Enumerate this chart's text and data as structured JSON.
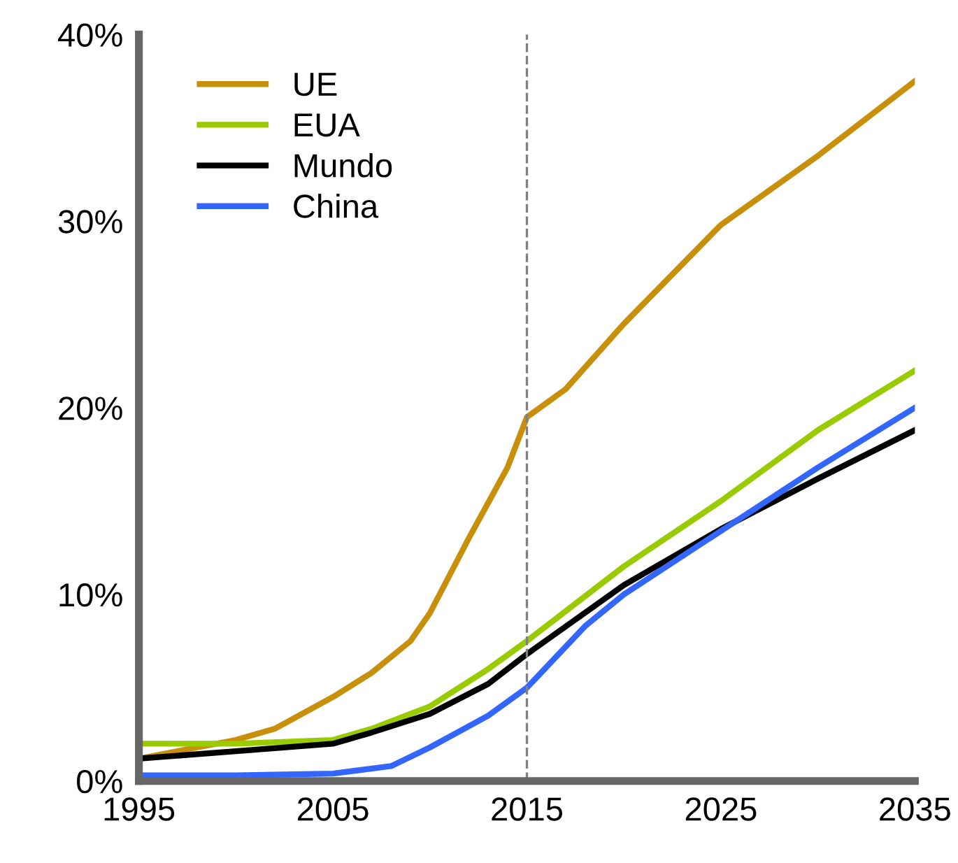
{
  "chart_data": {
    "type": "line",
    "xlim": [
      1995,
      2035
    ],
    "xticks": [
      1995,
      2005,
      2015,
      2025,
      2035
    ],
    "ylim": [
      0,
      40
    ],
    "yticks": [
      {
        "value": 0,
        "label": "0%"
      },
      {
        "value": 10,
        "label": "10%"
      },
      {
        "value": 20,
        "label": "20%"
      },
      {
        "value": 30,
        "label": "30%"
      },
      {
        "value": 40,
        "label": "40%"
      }
    ],
    "grid": false,
    "legend": "top left",
    "line_style": "solid",
    "marker": "none",
    "ref_lines": [
      {
        "axis": "x",
        "value": 2015,
        "color": "#808080",
        "line_style": "dashed"
      }
    ],
    "series": [
      {
        "name": "UE",
        "color": "#c8900a",
        "x": [
          1995,
          1998,
          2000,
          2002,
          2005,
          2007,
          2009,
          2010,
          2012,
          2014,
          2015,
          2017,
          2020,
          2025,
          2030,
          2035
        ],
        "values": [
          1.2,
          1.8,
          2.2,
          2.8,
          4.5,
          5.8,
          7.5,
          9,
          13,
          16.8,
          19.5,
          21,
          24.5,
          29.8,
          33.5,
          37.5
        ]
      },
      {
        "name": "EUA",
        "color": "#99cc00",
        "x": [
          1995,
          2000,
          2005,
          2007,
          2010,
          2013,
          2015,
          2020,
          2025,
          2030,
          2035
        ],
        "values": [
          2,
          2,
          2.2,
          2.8,
          4,
          6,
          7.5,
          11.5,
          15,
          18.8,
          22
        ]
      },
      {
        "name": "Mundo",
        "color": "#000000",
        "x": [
          1995,
          2000,
          2005,
          2007,
          2010,
          2013,
          2015,
          2020,
          2025,
          2030,
          2035
        ],
        "values": [
          1.2,
          1.6,
          2,
          2.6,
          3.6,
          5.2,
          6.8,
          10.5,
          13.5,
          16.2,
          18.8
        ]
      },
      {
        "name": "China",
        "color": "#3366ff",
        "x": [
          1995,
          2000,
          2005,
          2008,
          2010,
          2013,
          2015,
          2018,
          2020,
          2025,
          2030,
          2035
        ],
        "values": [
          0.3,
          0.3,
          0.4,
          0.8,
          1.8,
          3.5,
          5,
          8.3,
          10,
          13.4,
          16.8,
          20
        ]
      }
    ]
  }
}
